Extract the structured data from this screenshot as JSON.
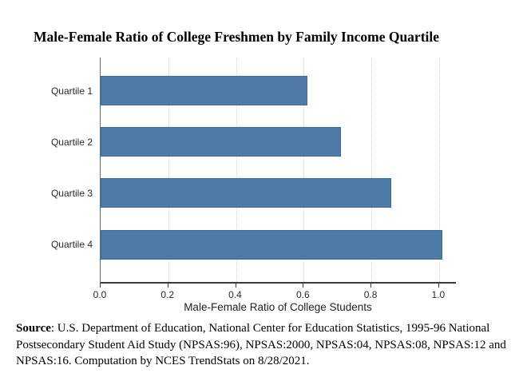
{
  "title": "Male-Female Ratio of College Freshmen by Family Income Quartile",
  "source_note": {
    "label": "Source",
    "text": ": U.S. Department of Education, National Center for Education Statistics, 1995-96 National Postsecondary Student Aid Study (NPSAS:96), NPSAS:2000, NPSAS:04, NPSAS:08, NPSAS:12 and NPSAS:16. Computation by NCES TrendStats on 8/28/2021."
  },
  "chart_data": {
    "type": "bar",
    "orientation": "horizontal",
    "title": "Male-Female Ratio of College Freshmen by Family Income Quartile",
    "categories": [
      "Quartile 1",
      "Quartile 2",
      "Quartile 3",
      "Quartile 4"
    ],
    "values": [
      0.61,
      0.71,
      0.86,
      1.01
    ],
    "xlabel": "Male-Female Ratio of College Students",
    "ylabel": "",
    "xlim": [
      0,
      1.05
    ],
    "x_ticks": [
      0,
      0.2,
      0.4,
      0.6,
      0.8,
      1.0
    ],
    "x_tick_labels": [
      "0.0",
      "0.2",
      "0.4",
      "0.6",
      "0.8",
      "1.0"
    ],
    "grid": "vertical-dotted",
    "legend": "none",
    "bar_color": "#4d7aa6",
    "bar_border_color": "#3d6a96",
    "gridline_color": "#d4d4d4",
    "axis_color": "#3a3a3a"
  }
}
